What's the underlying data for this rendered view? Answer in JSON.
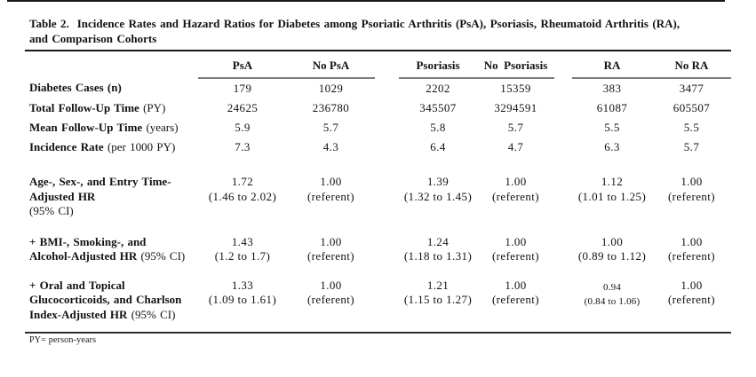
{
  "title": {
    "lines": [
      "Table 2.  Incidence Rates and Hazard Ratios for Diabetes among Psoriatic Arthritis (PsA), Psoriasis, Rheumatoid Arthritis (RA),",
      "and Comparison Cohorts"
    ]
  },
  "colors": {
    "text": "#121212",
    "title_rule": "#181818",
    "pair_rule": "#7b7b7b",
    "footnote_rule": "#2e2e2e"
  },
  "table": {
    "column_groups": [
      [
        "PsA",
        "No PsA"
      ],
      [
        "Psoriasis",
        "No  Psoriasis"
      ],
      [
        "RA",
        "No RA"
      ]
    ],
    "stat_rows": [
      {
        "label_bold": "Diabetes Cases (n)",
        "label_normal": "",
        "values": [
          "179",
          "1029",
          "2202",
          "15359",
          "383",
          "3477"
        ]
      },
      {
        "label_bold": "Total Follow-Up Time",
        "label_normal": " (PY)",
        "values": [
          "24625",
          "236780",
          "345507",
          "3294591",
          "61087",
          "605507"
        ]
      },
      {
        "label_bold": "Mean Follow-Up Time",
        "label_normal": " (years)",
        "values": [
          "5.9",
          "5.7",
          "5.8",
          "5.7",
          "5.5",
          "5.5"
        ]
      },
      {
        "label_bold": "Incidence Rate",
        "label_normal": " (per 1000 PY)",
        "values": [
          "7.3",
          "4.3",
          "6.4",
          "4.7",
          "6.3",
          "5.7"
        ]
      }
    ],
    "hr_rows": [
      {
        "label_lines": [
          {
            "b": "Age-, Sex-, and Entry Time-",
            "n": ""
          },
          {
            "b": "Adjusted HR",
            "n": ""
          },
          {
            "b": "",
            "n": "(95% CI)"
          }
        ],
        "cells": [
          {
            "hr": "1.72",
            "ci": "(1.46 to 2.02)"
          },
          {
            "hr": "1.00",
            "ci": "(referent)"
          },
          {
            "hr": "1.39",
            "ci": "(1.32 to 1.45)"
          },
          {
            "hr": "1.00",
            "ci": "(referent)"
          },
          {
            "hr": "1.12",
            "ci": "(1.01 to 1.25)"
          },
          {
            "hr": "1.00",
            "ci": "(referent)"
          }
        ]
      },
      {
        "label_lines": [
          {
            "b": "+ BMI-, Smoking-, and",
            "n": ""
          },
          {
            "b": "Alcohol-Adjusted HR",
            "n": " (95% CI)"
          }
        ],
        "cells": [
          {
            "hr": "1.43",
            "ci": "(1.2 to 1.7)"
          },
          {
            "hr": "1.00",
            "ci": "(referent)"
          },
          {
            "hr": "1.24",
            "ci": "(1.18 to 1.31)"
          },
          {
            "hr": "1.00",
            "ci": "(referent)"
          },
          {
            "hr": "1.00",
            "ci": "(0.89 to 1.12)"
          },
          {
            "hr": "1.00",
            "ci": "(referent)"
          }
        ]
      },
      {
        "label_lines": [
          {
            "b": "+ Oral and Topical",
            "n": ""
          },
          {
            "b": "Glucocorticoids, and Charlson",
            "n": ""
          },
          {
            "b": "Index-Adjusted HR",
            "n": " (95% CI)"
          }
        ],
        "cells": [
          {
            "hr": "1.33",
            "ci": "(1.09 to 1.61)"
          },
          {
            "hr": "1.00",
            "ci": "(referent)"
          },
          {
            "hr": "1.21",
            "ci": "(1.15 to 1.27)"
          },
          {
            "hr": "1.00",
            "ci": "(referent)"
          },
          {
            "hr": "0.94",
            "ci": "(0.84 to 1.06)",
            "small": true
          },
          {
            "hr": "1.00",
            "ci": "(referent)"
          }
        ]
      }
    ]
  },
  "footnote": "PY= person-years"
}
